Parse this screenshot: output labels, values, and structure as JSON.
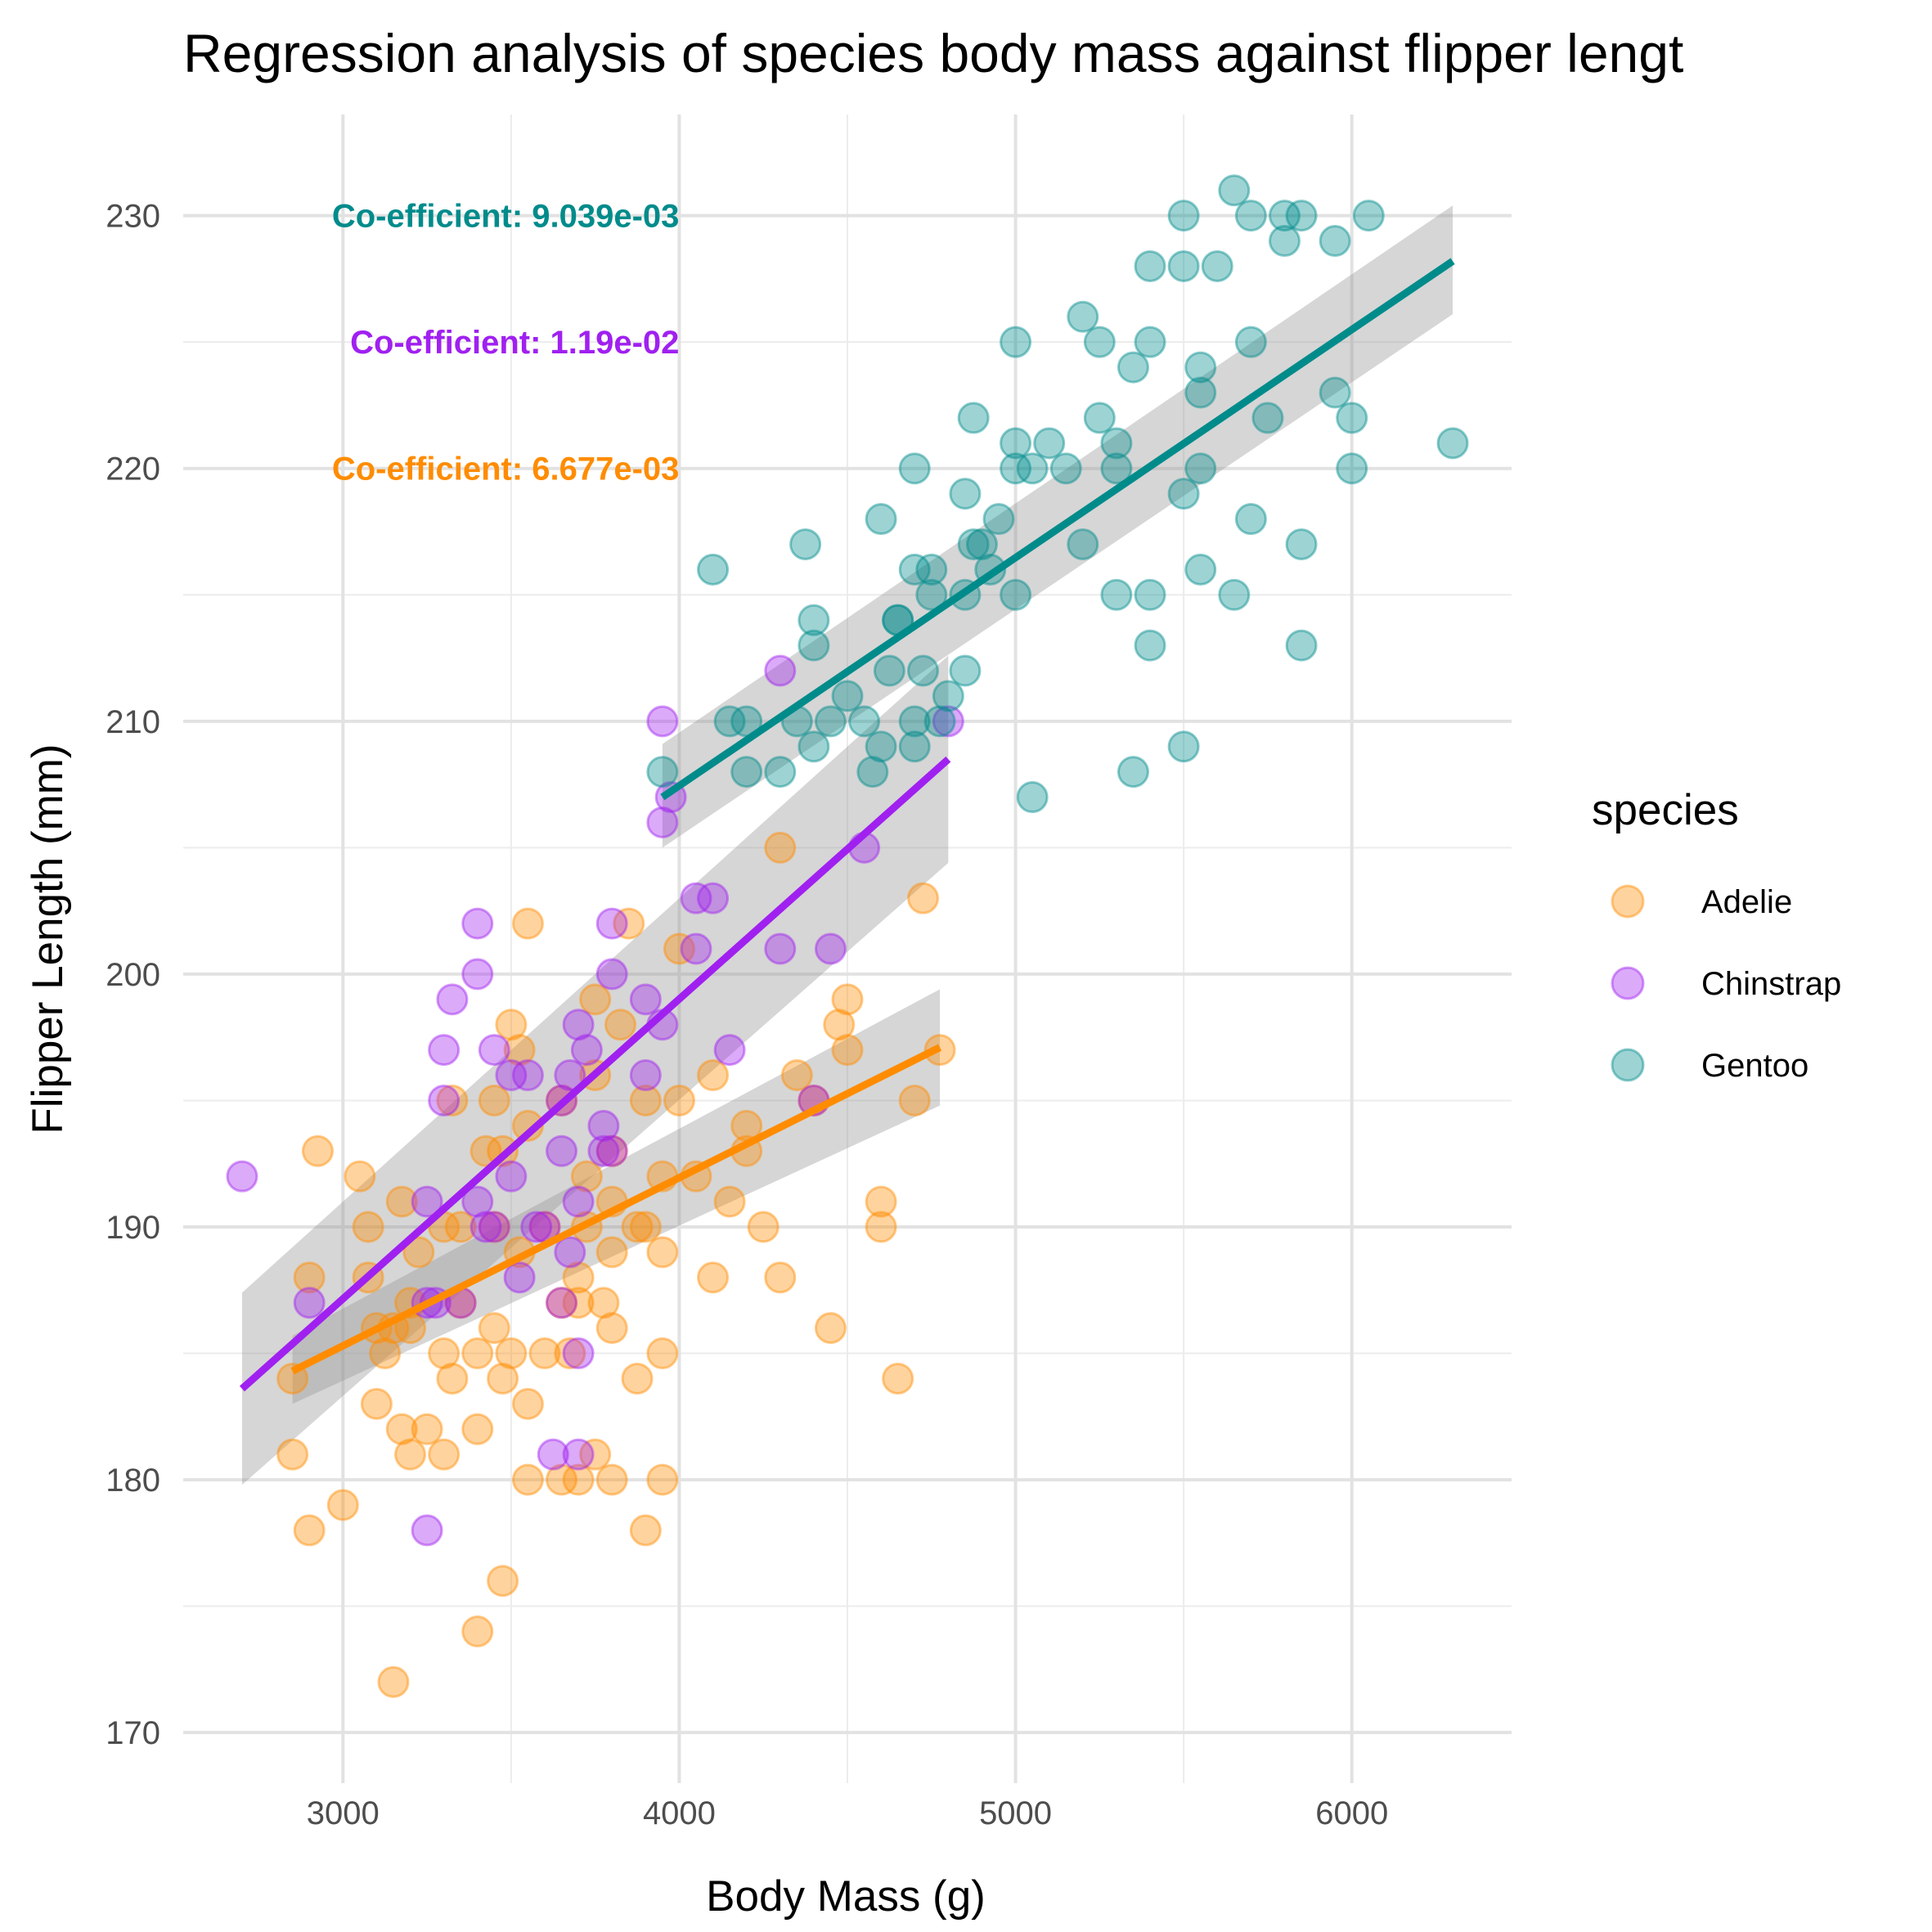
{
  "chart_data": {
    "type": "scatter",
    "title": "Regression analysis of species body mass against flipper lengt",
    "xlabel": "Body Mass (g)",
    "ylabel": "Flipper Length (mm)",
    "xlim": [
      2525,
      6475
    ],
    "ylim": [
      168,
      234
    ],
    "x_ticks": [
      3000,
      4000,
      5000,
      6000
    ],
    "y_ticks": [
      170,
      180,
      190,
      200,
      210,
      220,
      230
    ],
    "grid": true,
    "legend": {
      "title": "species",
      "position": "right"
    },
    "series": [
      {
        "name": "Adelie",
        "color": "#FF8C00",
        "fit": {
          "x": [
            2850,
            4775
          ],
          "y": [
            184.3,
            197.1
          ],
          "band": [
            [
              183.0,
              185.7
            ],
            [
              194.8,
              199.4
            ]
          ]
        },
        "points": [
          [
            2850,
            184
          ],
          [
            2850,
            181
          ],
          [
            2900,
            188
          ],
          [
            2900,
            178
          ],
          [
            2925,
            193
          ],
          [
            3000,
            179
          ],
          [
            3050,
            192
          ],
          [
            3075,
            188
          ],
          [
            3075,
            190
          ],
          [
            3100,
            183
          ],
          [
            3100,
            186
          ],
          [
            3125,
            185
          ],
          [
            3150,
            186
          ],
          [
            3150,
            172
          ],
          [
            3175,
            182
          ],
          [
            3175,
            191
          ],
          [
            3200,
            186
          ],
          [
            3200,
            181
          ],
          [
            3200,
            187
          ],
          [
            3225,
            189
          ],
          [
            3250,
            182
          ],
          [
            3300,
            181
          ],
          [
            3300,
            185
          ],
          [
            3300,
            190
          ],
          [
            3325,
            195
          ],
          [
            3325,
            184
          ],
          [
            3350,
            187
          ],
          [
            3350,
            190
          ],
          [
            3400,
            185
          ],
          [
            3400,
            182
          ],
          [
            3400,
            174
          ],
          [
            3425,
            193
          ],
          [
            3450,
            195
          ],
          [
            3450,
            190
          ],
          [
            3450,
            186
          ],
          [
            3475,
            184
          ],
          [
            3475,
            193
          ],
          [
            3475,
            176
          ],
          [
            3500,
            198
          ],
          [
            3500,
            185
          ],
          [
            3525,
            189
          ],
          [
            3525,
            197
          ],
          [
            3550,
            194
          ],
          [
            3550,
            180
          ],
          [
            3550,
            183
          ],
          [
            3550,
            202
          ],
          [
            3600,
            185
          ],
          [
            3600,
            190
          ],
          [
            3650,
            187
          ],
          [
            3650,
            180
          ],
          [
            3650,
            195
          ],
          [
            3675,
            185
          ],
          [
            3700,
            188
          ],
          [
            3700,
            180
          ],
          [
            3700,
            187
          ],
          [
            3725,
            190
          ],
          [
            3725,
            192
          ],
          [
            3750,
            196
          ],
          [
            3750,
            199
          ],
          [
            3750,
            181
          ],
          [
            3775,
            187
          ],
          [
            3800,
            193
          ],
          [
            3800,
            191
          ],
          [
            3800,
            186
          ],
          [
            3800,
            180
          ],
          [
            3800,
            189
          ],
          [
            3825,
            198
          ],
          [
            3850,
            202
          ],
          [
            3875,
            190
          ],
          [
            3875,
            184
          ],
          [
            3900,
            190
          ],
          [
            3900,
            178
          ],
          [
            3900,
            195
          ],
          [
            3950,
            189
          ],
          [
            3950,
            192
          ],
          [
            3950,
            180
          ],
          [
            3950,
            185
          ],
          [
            4000,
            201
          ],
          [
            4000,
            195
          ],
          [
            4050,
            192
          ],
          [
            4100,
            196
          ],
          [
            4100,
            188
          ],
          [
            4150,
            191
          ],
          [
            4200,
            193
          ],
          [
            4200,
            194
          ],
          [
            4250,
            190
          ],
          [
            4300,
            188
          ],
          [
            4300,
            205
          ],
          [
            4350,
            196
          ],
          [
            4400,
            195
          ],
          [
            4450,
            186
          ],
          [
            4475,
            198
          ],
          [
            4500,
            199
          ],
          [
            4500,
            197
          ],
          [
            4600,
            191
          ],
          [
            4600,
            190
          ],
          [
            4650,
            184
          ],
          [
            4700,
            195
          ],
          [
            4725,
            203
          ],
          [
            4775,
            197
          ]
        ]
      },
      {
        "name": "Chinstrap",
        "color": "#A020F0",
        "fit": {
          "x": [
            2700,
            4800
          ],
          "y": [
            183.6,
            208.5
          ],
          "band": [
            [
              179.8,
              187.4
            ],
            [
              204.4,
              212.6
            ]
          ]
        },
        "points": [
          [
            2700,
            192
          ],
          [
            2900,
            187
          ],
          [
            3250,
            191
          ],
          [
            3250,
            187
          ],
          [
            3250,
            178
          ],
          [
            3275,
            187
          ],
          [
            3300,
            195
          ],
          [
            3300,
            197
          ],
          [
            3325,
            199
          ],
          [
            3350,
            187
          ],
          [
            3400,
            202
          ],
          [
            3400,
            200
          ],
          [
            3400,
            191
          ],
          [
            3425,
            190
          ],
          [
            3450,
            197
          ],
          [
            3450,
            190
          ],
          [
            3500,
            192
          ],
          [
            3500,
            196
          ],
          [
            3525,
            188
          ],
          [
            3550,
            196
          ],
          [
            3575,
            190
          ],
          [
            3600,
            190
          ],
          [
            3625,
            181
          ],
          [
            3650,
            195
          ],
          [
            3650,
            193
          ],
          [
            3650,
            187
          ],
          [
            3675,
            189
          ],
          [
            3675,
            196
          ],
          [
            3700,
            198
          ],
          [
            3700,
            191
          ],
          [
            3700,
            185
          ],
          [
            3700,
            181
          ],
          [
            3725,
            197
          ],
          [
            3775,
            193
          ],
          [
            3775,
            194
          ],
          [
            3800,
            193
          ],
          [
            3800,
            200
          ],
          [
            3800,
            202
          ],
          [
            3900,
            199
          ],
          [
            3900,
            196
          ],
          [
            3950,
            198
          ],
          [
            3950,
            206
          ],
          [
            3950,
            210
          ],
          [
            3975,
            207
          ],
          [
            4050,
            201
          ],
          [
            4050,
            203
          ],
          [
            4100,
            203
          ],
          [
            4150,
            197
          ],
          [
            4300,
            212
          ],
          [
            4300,
            201
          ],
          [
            4400,
            195
          ],
          [
            4450,
            201
          ],
          [
            4550,
            205
          ],
          [
            4800,
            210
          ]
        ]
      },
      {
        "name": "Gentoo",
        "color": "#008B8B",
        "fit": {
          "x": [
            3950,
            6300
          ],
          "y": [
            207.0,
            228.2
          ],
          "band": [
            [
              205.0,
              209.1
            ],
            [
              226.1,
              230.4
            ]
          ]
        },
        "points": [
          [
            3950,
            208
          ],
          [
            4100,
            216
          ],
          [
            4150,
            210
          ],
          [
            4200,
            210
          ],
          [
            4200,
            208
          ],
          [
            4300,
            208
          ],
          [
            4350,
            210
          ],
          [
            4375,
            217
          ],
          [
            4400,
            213
          ],
          [
            4400,
            209
          ],
          [
            4400,
            214
          ],
          [
            4450,
            210
          ],
          [
            4500,
            211
          ],
          [
            4550,
            210
          ],
          [
            4575,
            208
          ],
          [
            4600,
            218
          ],
          [
            4600,
            209
          ],
          [
            4625,
            212
          ],
          [
            4650,
            214
          ],
          [
            4650,
            214
          ],
          [
            4700,
            210
          ],
          [
            4700,
            209
          ],
          [
            4700,
            216
          ],
          [
            4700,
            220
          ],
          [
            4725,
            212
          ],
          [
            4750,
            215
          ],
          [
            4750,
            216
          ],
          [
            4775,
            210
          ],
          [
            4800,
            211
          ],
          [
            4850,
            212
          ],
          [
            4850,
            215
          ],
          [
            4850,
            219
          ],
          [
            4875,
            222
          ],
          [
            4875,
            217
          ],
          [
            4900,
            217
          ],
          [
            4925,
            216
          ],
          [
            4950,
            218
          ],
          [
            5000,
            220
          ],
          [
            5000,
            221
          ],
          [
            5000,
            225
          ],
          [
            5000,
            215
          ],
          [
            5050,
            207
          ],
          [
            5050,
            220
          ],
          [
            5100,
            221
          ],
          [
            5150,
            220
          ],
          [
            5200,
            226
          ],
          [
            5200,
            217
          ],
          [
            5250,
            222
          ],
          [
            5250,
            225
          ],
          [
            5300,
            221
          ],
          [
            5300,
            220
          ],
          [
            5300,
            215
          ],
          [
            5350,
            208
          ],
          [
            5350,
            224
          ],
          [
            5400,
            228
          ],
          [
            5400,
            225
          ],
          [
            5400,
            213
          ],
          [
            5400,
            215
          ],
          [
            5500,
            230
          ],
          [
            5500,
            228
          ],
          [
            5500,
            219
          ],
          [
            5500,
            209
          ],
          [
            5550,
            224
          ],
          [
            5550,
            220
          ],
          [
            5550,
            223
          ],
          [
            5550,
            216
          ],
          [
            5600,
            228
          ],
          [
            5650,
            231
          ],
          [
            5650,
            215
          ],
          [
            5700,
            230
          ],
          [
            5700,
            225
          ],
          [
            5700,
            218
          ],
          [
            5750,
            222
          ],
          [
            5800,
            230
          ],
          [
            5800,
            229
          ],
          [
            5850,
            230
          ],
          [
            5850,
            217
          ],
          [
            5850,
            213
          ],
          [
            5950,
            229
          ],
          [
            5950,
            223
          ],
          [
            6000,
            220
          ],
          [
            6000,
            222
          ],
          [
            6050,
            230
          ],
          [
            6300,
            221
          ]
        ]
      }
    ],
    "annotations": [
      {
        "text": "Co-efficient: 9.039e-03",
        "color": "#008B8B"
      },
      {
        "text": "Co-efficient: 1.19e-02",
        "color": "#A020F0"
      },
      {
        "text": "Co-efficient: 6.677e-03",
        "color": "#FF8C00"
      }
    ]
  }
}
